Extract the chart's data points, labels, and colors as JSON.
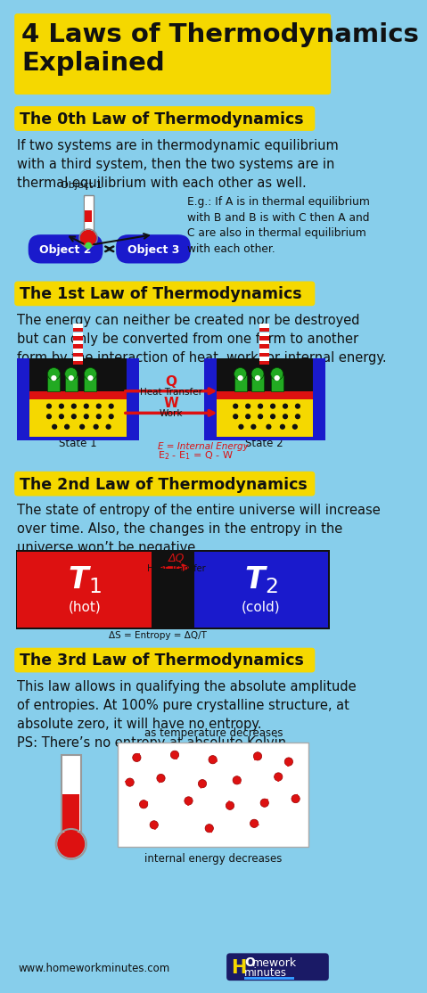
{
  "bg_color": "#87CEEB",
  "yellow": "#F5D800",
  "blue_dark": "#1A1ACC",
  "red_col": "#DD1111",
  "black": "#111111",
  "white": "#FFFFFF",
  "green": "#22AA22",
  "title": "4 Laws of Thermodynamics\nExplained",
  "law0_header": "The 0th Law of Thermodynamics",
  "law0_body": "If two systems are in thermodynamic equilibrium\nwith a third system, then the two systems are in\nthermal equilibrium with each other as well.",
  "law0_eg": "E.g.: If A is in thermal equilibrium\nwith B and B is with C then A and\nC are also in thermal equilibrium\nwith each other.",
  "law1_header": "The 1st Law of Thermodynamics",
  "law1_body": "The energy can neither be created nor be destroyed\nbut can only be converted from one form to another\nform by the interaction of heat, work, or internal energy.",
  "law2_header": "The 2nd Law of Thermodynamics",
  "law2_body": "The state of entropy of the entire universe will increase\nover time. Also, the changes in the entropy in the\nuniverse won’t be negative.",
  "law3_header": "The 3rd Law of Thermodynamics",
  "law3_body": "This law allows in qualifying the absolute amplitude\nof entropies. At 100% pure crystalline structure, at\nabsolute zero, it will have no entropy.\nPS: There’s no entropy at absolute Kelvin",
  "footer_url": "www.homeworkminutes.com",
  "logo_bg": "#1A1A66",
  "logo_blue": "#3399FF"
}
